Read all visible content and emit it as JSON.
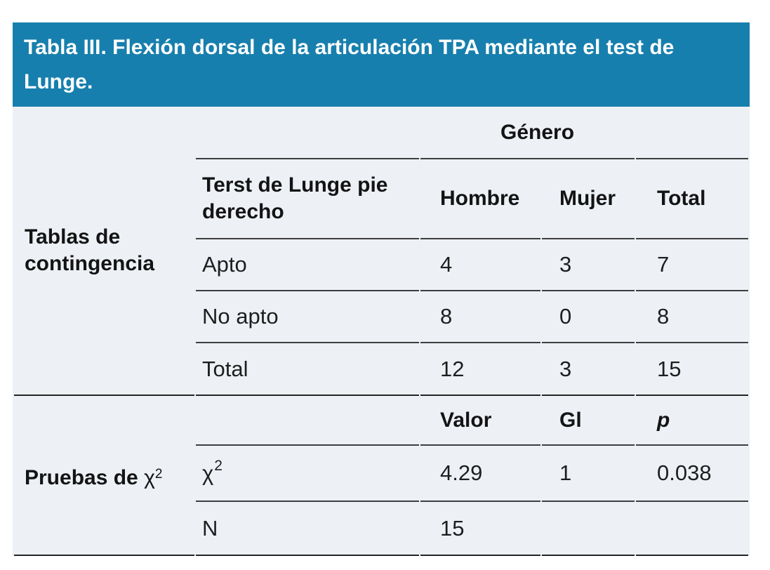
{
  "title": "Tabla III. Flexión dorsal de la articulación TPA mediante el test de Lunge.",
  "colors": {
    "accent_blue": "#177FAD",
    "body_background": "#EDF1F6",
    "rule_dark": "#242424",
    "rule_mid": "#3E3E3E"
  },
  "contingency": {
    "side_label": "Tablas de contingencia",
    "gender_group_header": "Género",
    "row_header": "Terst de Lunge pie derecho",
    "col_hombre": "Hombre",
    "col_mujer": "Mujer",
    "col_total": "Total",
    "rows": [
      {
        "label": "Apto",
        "hombre": "4",
        "mujer": "3",
        "total": "7"
      },
      {
        "label": "No apto",
        "hombre": "8",
        "mujer": "0",
        "total": "8"
      },
      {
        "label": "Total",
        "hombre": "12",
        "mujer": "3",
        "total": "15"
      }
    ]
  },
  "chi_square": {
    "side_label_prefix": "Pruebas de ",
    "side_label_symbol": "χ",
    "side_label_sup": "2",
    "col_valor": "Valor",
    "col_gl": "Gl",
    "col_p": "p",
    "chi_row": {
      "symbol": "χ",
      "sup": "2",
      "valor": "4.29",
      "gl": "1",
      "p": "0.038"
    },
    "n_row": {
      "label": "N",
      "valor": "15"
    }
  }
}
